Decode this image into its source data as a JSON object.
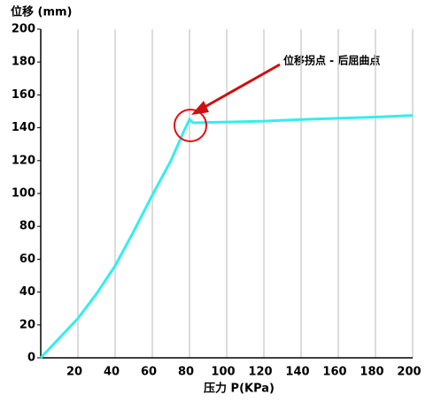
{
  "chart_data": {
    "type": "line",
    "y_label": "位移 (mm)",
    "x_label": "压力 P(KPa)",
    "annotation": "位移拐点 - 后屈曲点",
    "x": [
      0,
      10,
      20,
      30,
      40,
      50,
      60,
      70,
      77,
      80,
      82,
      100,
      120,
      140,
      160,
      180,
      200
    ],
    "series": [
      {
        "color": "#33eeee",
        "values": [
          0,
          12,
          24,
          39,
          56,
          77,
          99,
          120,
          138,
          145,
          143,
          143.5,
          144,
          145,
          145.8,
          146.5,
          147.5
        ]
      }
    ],
    "xlim": [
      0,
      200
    ],
    "xticks": [
      20,
      40,
      60,
      80,
      100,
      120,
      140,
      160,
      180,
      200
    ],
    "ylim": [
      0,
      200
    ],
    "yticks": [
      0,
      20,
      40,
      60,
      80,
      100,
      120,
      140,
      160,
      180,
      200
    ],
    "grid": true
  }
}
